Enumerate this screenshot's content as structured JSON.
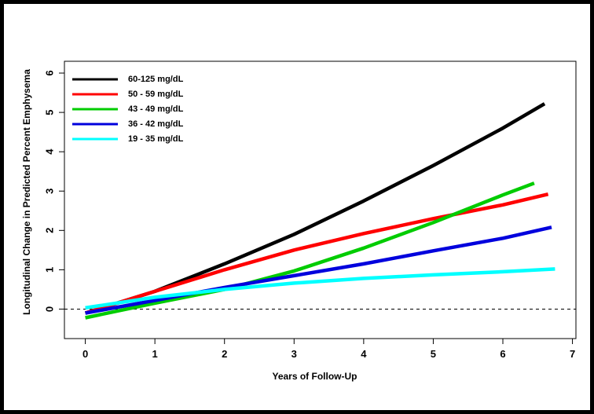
{
  "chart_data": {
    "type": "line",
    "title": "",
    "xlabel": "Years of Follow-Up",
    "ylabel": "Longitudinal Change in Predicted Percent Emphysema",
    "xlim": [
      -0.3,
      7.05
    ],
    "ylim": [
      -0.75,
      6.3
    ],
    "xticks": [
      0,
      1,
      2,
      3,
      4,
      5,
      6,
      7
    ],
    "yticks": [
      0,
      1,
      2,
      3,
      4,
      5,
      6
    ],
    "grid": false,
    "legend_position": "top-left",
    "reference_line": {
      "y": 0,
      "style": "dashed"
    },
    "series": [
      {
        "name": "60-125 mg/dL",
        "color": "#000000",
        "points": [
          [
            0,
            -0.1
          ],
          [
            1,
            0.45
          ],
          [
            2,
            1.15
          ],
          [
            3,
            1.9
          ],
          [
            4,
            2.75
          ],
          [
            5,
            3.65
          ],
          [
            6,
            4.6
          ],
          [
            6.6,
            5.22
          ]
        ]
      },
      {
        "name": "50 - 59 mg/dL",
        "color": "#ff0000",
        "points": [
          [
            0,
            -0.1
          ],
          [
            1,
            0.45
          ],
          [
            2,
            1.0
          ],
          [
            3,
            1.5
          ],
          [
            4,
            1.92
          ],
          [
            5,
            2.3
          ],
          [
            6,
            2.65
          ],
          [
            6.65,
            2.92
          ]
        ]
      },
      {
        "name": "43 - 49 mg/dL",
        "color": "#00cc00",
        "points": [
          [
            0,
            -0.22
          ],
          [
            1,
            0.15
          ],
          [
            2,
            0.5
          ],
          [
            3,
            0.97
          ],
          [
            4,
            1.55
          ],
          [
            5,
            2.2
          ],
          [
            6,
            2.9
          ],
          [
            6.45,
            3.2
          ]
        ]
      },
      {
        "name": "36 - 42 mg/dL",
        "color": "#0000dd",
        "points": [
          [
            0,
            -0.1
          ],
          [
            1,
            0.22
          ],
          [
            2,
            0.55
          ],
          [
            3,
            0.85
          ],
          [
            4,
            1.15
          ],
          [
            5,
            1.48
          ],
          [
            6,
            1.8
          ],
          [
            6.7,
            2.08
          ]
        ]
      },
      {
        "name": "19 - 35 mg/dL",
        "color": "#00ffff",
        "points": [
          [
            0,
            0.03
          ],
          [
            1,
            0.3
          ],
          [
            2,
            0.5
          ],
          [
            3,
            0.66
          ],
          [
            4,
            0.78
          ],
          [
            5,
            0.87
          ],
          [
            6,
            0.95
          ],
          [
            6.75,
            1.02
          ]
        ]
      }
    ]
  }
}
